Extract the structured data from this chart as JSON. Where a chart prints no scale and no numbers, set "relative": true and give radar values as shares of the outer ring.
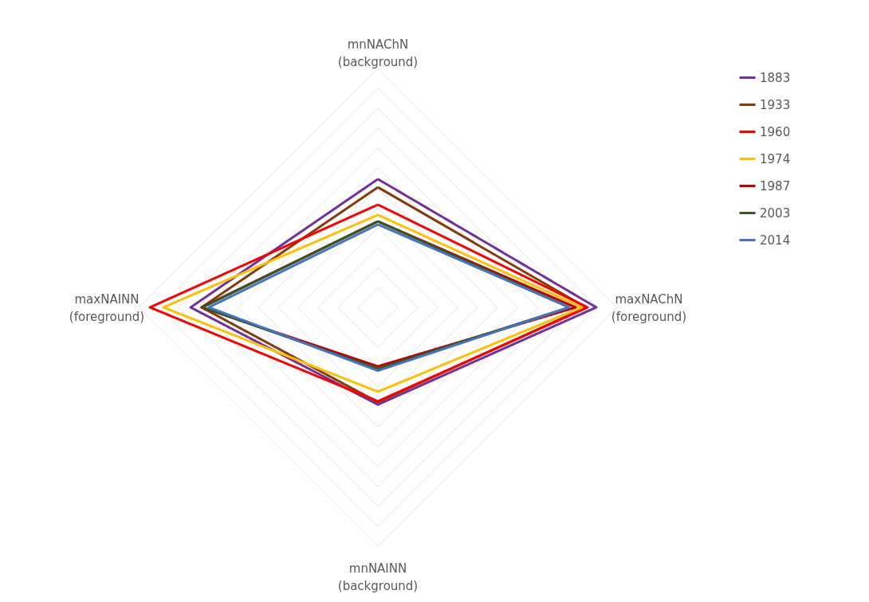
{
  "chart_data": {
    "type": "radar",
    "relative": true,
    "grid": true,
    "legend": "right",
    "marker": "none",
    "line_style": "solid",
    "categories": [
      "mnNAChN\n(background)",
      "maxNAChN\n(foreground)",
      "mnNAINN\n(background)",
      "maxNAINN\n(foreground)"
    ],
    "series": [
      {
        "name": "1883",
        "color": "#7030a0",
        "values": [
          0.537,
          0.913,
          0.407,
          0.783
        ]
      },
      {
        "name": "1933",
        "color": "#843c0c",
        "values": [
          0.503,
          0.87,
          0.397,
          0.737
        ]
      },
      {
        "name": "1960",
        "color": "#ff0000",
        "values": [
          0.43,
          0.877,
          0.393,
          0.953
        ]
      },
      {
        "name": "1974",
        "color": "#ffc000",
        "values": [
          0.387,
          0.853,
          0.353,
          0.897
        ]
      },
      {
        "name": "1987",
        "color": "#c00000",
        "values": [
          0.36,
          0.827,
          0.247,
          0.737
        ]
      },
      {
        "name": "2003",
        "color": "#375623",
        "values": [
          0.36,
          0.8,
          0.257,
          0.733
        ]
      },
      {
        "name": "2014",
        "color": "#4472c4",
        "values": [
          0.347,
          0.8,
          0.265,
          0.707
        ]
      }
    ]
  }
}
